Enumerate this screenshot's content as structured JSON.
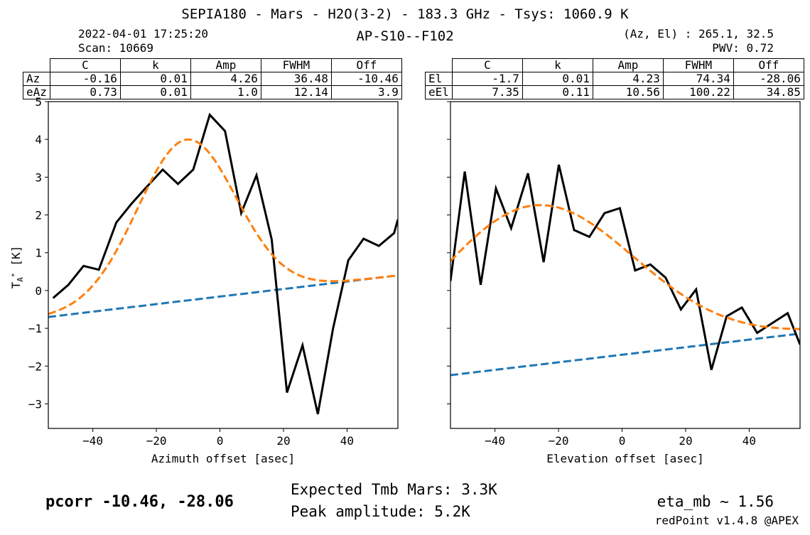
{
  "header": {
    "title": "SEPIA180 - Mars - H2O(3-2) - 183.3 GHz - Tsys: 1060.9 K",
    "datetime": "2022-04-01 17:25:20",
    "scan": "Scan: 10669",
    "subtitle": "AP-S10--F102",
    "azel": "(Az, El) : 265.1, 32.5",
    "pwv": "PWV: 0.72"
  },
  "tables": {
    "columns": [
      "C",
      "k",
      "Amp",
      "FWHM",
      "Off"
    ],
    "az": {
      "rows": [
        {
          "label": "Az",
          "values": [
            "-0.16",
            "0.01",
            "4.26",
            "36.48",
            "-10.46"
          ]
        },
        {
          "label": "eAz",
          "values": [
            "0.73",
            "0.01",
            "1.0",
            "12.14",
            "3.9"
          ]
        }
      ]
    },
    "el": {
      "rows": [
        {
          "label": "El",
          "values": [
            "-1.7",
            "0.01",
            "4.23",
            "74.34",
            "-28.06"
          ]
        },
        {
          "label": "eEl",
          "values": [
            "7.35",
            "0.11",
            "10.56",
            "100.22",
            "34.85"
          ]
        }
      ]
    }
  },
  "footer": {
    "pcorr": "pcorr -10.46, -28.06",
    "expected_tmb": "Expected Tmb Mars: 3.3K",
    "peak_amplitude": "Peak amplitude: 5.2K",
    "eta_mb": "eta_mb ~ 1.56",
    "version": "redPoint v1.4.8 @APEX"
  },
  "colors": {
    "data": "#000000",
    "gauss_fit": "#ff7f0e",
    "baseline": "#1f77b4"
  },
  "chart_data": [
    {
      "type": "line",
      "xlabel": "Azimuth offset [asec]",
      "ylabel": "T",
      "ylabel_sub": "A",
      "ylabel_sup": "*",
      "ylabel_unit": "[K]",
      "xlim": [
        -54,
        56
      ],
      "ylim": [
        -3.65,
        5
      ],
      "xticks": [
        -40,
        -20,
        0,
        20,
        40
      ],
      "xtick_labels": [
        "−40",
        "−20",
        "0",
        "20",
        "40"
      ],
      "yticks": [
        -3,
        -2,
        -1,
        0,
        1,
        2,
        3,
        4,
        5
      ],
      "ytick_labels": [
        "−3",
        "−2",
        "−1",
        "0",
        "1",
        "2",
        "3",
        "4",
        "5"
      ],
      "show_ytick_labels": true,
      "series": [
        {
          "role": "data",
          "x": [
            -52.5,
            -47.7,
            -42.9,
            -38.1,
            -32.6,
            -27.8,
            -23.5,
            -18.0,
            -13.2,
            -8.4,
            -3.2,
            1.6,
            6.7,
            11.5,
            16.3,
            21.1,
            26.0,
            30.8,
            35.6,
            40.4,
            45.2,
            50.0,
            54.8,
            56.0
          ],
          "y": [
            -0.2,
            0.15,
            0.65,
            0.55,
            1.8,
            2.3,
            2.7,
            3.2,
            2.82,
            3.2,
            4.65,
            4.22,
            2.05,
            3.05,
            1.35,
            -2.7,
            -1.45,
            -3.27,
            -1.0,
            0.8,
            1.37,
            1.18,
            1.52,
            1.88
          ]
        }
      ],
      "gauss": {
        "amp": 4.26,
        "center": -10.46,
        "fwhm": 36.48,
        "c": -0.16,
        "k": 0.01,
        "step": 1
      }
    },
    {
      "type": "line",
      "xlabel": "Elevation offset [asec]",
      "xlim": [
        -54,
        56
      ],
      "ylim": [
        -3.65,
        5
      ],
      "xticks": [
        -40,
        -20,
        0,
        20,
        40
      ],
      "xtick_labels": [
        "−40",
        "−20",
        "0",
        "20",
        "40"
      ],
      "yticks": [
        -3,
        -2,
        -1,
        0,
        1,
        2,
        3,
        4,
        5
      ],
      "show_ytick_labels": false,
      "series": [
        {
          "role": "data",
          "x": [
            -54.0,
            -49.5,
            -44.5,
            -39.7,
            -34.9,
            -29.6,
            -24.7,
            -19.9,
            -15.1,
            -10.3,
            -5.5,
            -0.7,
            4.1,
            8.9,
            13.7,
            18.5,
            23.3,
            28.1,
            32.9,
            37.7,
            42.5,
            47.3,
            52.1,
            56.0
          ],
          "y": [
            0.25,
            3.15,
            0.15,
            2.7,
            1.65,
            3.1,
            0.75,
            3.33,
            1.6,
            1.42,
            2.05,
            2.18,
            0.53,
            0.69,
            0.34,
            -0.5,
            0.03,
            -2.1,
            -0.68,
            -0.45,
            -1.12,
            -0.86,
            -0.6,
            -1.43
          ]
        }
      ],
      "gauss": {
        "amp": 4.23,
        "center": -28.06,
        "fwhm": 74.34,
        "c": -1.7,
        "k": 0.01,
        "step": 1
      }
    }
  ]
}
